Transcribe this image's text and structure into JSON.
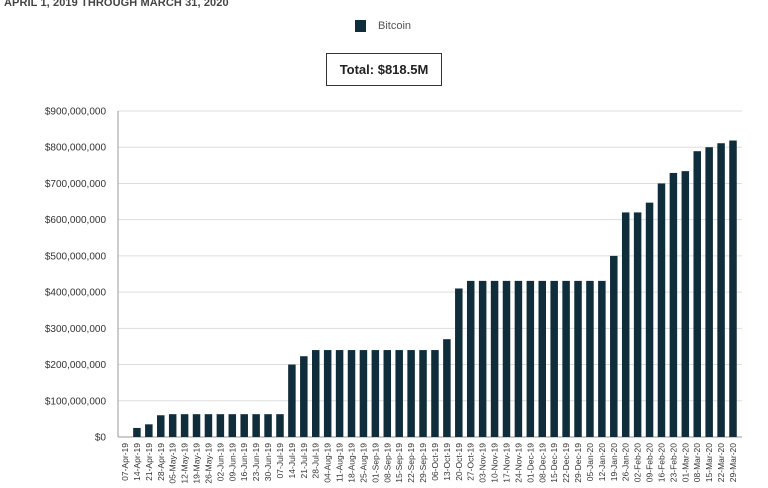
{
  "header": {
    "subtitle": "APRIL 1, 2019 THROUGH MARCH 31, 2020",
    "total_label": "Total: $818.5M"
  },
  "colors": {
    "bar": "#0f2d3a",
    "grid": "#dddddd"
  },
  "chart_data": {
    "type": "bar",
    "legend": [
      {
        "name": "Bitcoin",
        "color": "#0f2d3a"
      }
    ],
    "legend_placement": "top-center",
    "ylim": [
      0,
      900000000
    ],
    "yticks": [
      0,
      100000000,
      200000000,
      300000000,
      400000000,
      500000000,
      600000000,
      700000000,
      800000000,
      900000000
    ],
    "ytick_labels": [
      "$0",
      "$100,000,000",
      "$200,000,000",
      "$300,000,000",
      "$400,000,000",
      "$500,000,000",
      "$600,000,000",
      "$700,000,000",
      "$800,000,000",
      "$900,000,000"
    ],
    "grid": true,
    "categories": [
      "07-Apr-19",
      "14-Apr-19",
      "21-Apr-19",
      "28-Apr-19",
      "05-May-19",
      "12-May-19",
      "19-May-19",
      "26-May-19",
      "02-Jun-19",
      "09-Jun-19",
      "16-Jun-19",
      "23-Jun-19",
      "30-Jun-19",
      "07-Jul-19",
      "14-Jul-19",
      "21-Jul-19",
      "28-Jul-19",
      "04-Aug-19",
      "11-Aug-19",
      "18-Aug-19",
      "25-Aug-19",
      "01-Sep-19",
      "08-Sep-19",
      "15-Sep-19",
      "22-Sep-19",
      "29-Sep-19",
      "06-Oct-19",
      "13-Oct-19",
      "20-Oct-19",
      "27-Oct-19",
      "03-Nov-19",
      "10-Nov-19",
      "17-Nov-19",
      "24-Nov-19",
      "01-Dec-19",
      "08-Dec-19",
      "15-Dec-19",
      "22-Dec-19",
      "29-Dec-19",
      "05-Jan-20",
      "12-Jan-20",
      "19-Jan-20",
      "26-Jan-20",
      "02-Feb-20",
      "09-Feb-20",
      "16-Feb-20",
      "23-Feb-20",
      "01-Mar-20",
      "08-Mar-20",
      "15-Mar-20",
      "22-Mar-20",
      "29-Mar-20"
    ],
    "series": [
      {
        "name": "Bitcoin",
        "values": [
          0,
          25000000,
          35000000,
          60000000,
          63000000,
          63000000,
          63000000,
          63000000,
          63000000,
          63000000,
          63000000,
          63000000,
          63000000,
          63000000,
          200000000,
          223000000,
          240000000,
          240000000,
          240000000,
          240000000,
          240000000,
          240000000,
          240000000,
          240000000,
          240000000,
          240000000,
          240000000,
          270000000,
          410000000,
          431000000,
          431000000,
          431000000,
          431000000,
          431000000,
          431000000,
          431000000,
          431000000,
          431000000,
          431000000,
          431000000,
          431000000,
          500000000,
          620000000,
          620000000,
          647000000,
          700000000,
          729000000,
          734000000,
          789000000,
          800000000,
          811000000,
          818500000
        ]
      }
    ]
  }
}
